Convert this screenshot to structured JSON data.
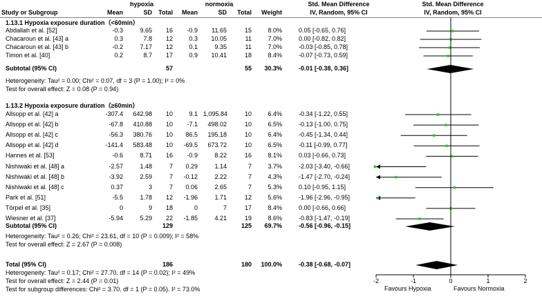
{
  "header": {
    "study_col": "Study or Subgroup",
    "group1": "hypoxia",
    "group2": "normoxia",
    "mean": "Mean",
    "sd": "SD",
    "total": "Total",
    "weight": "Weight",
    "smd_title": "Std. Mean Difference",
    "smd_sub": "IV, Random, 95% CI"
  },
  "chart_data": {
    "type": "forest",
    "title": "Std. Mean Difference",
    "method": "IV, Random, 95% CI",
    "xlim": [
      -2,
      2
    ],
    "xticks": [
      "-2",
      "-1",
      "0",
      "1",
      "2"
    ],
    "xlabel_left": "Favours Hypoxia",
    "xlabel_right": "Favours Normoxia",
    "subgroups": [
      {
        "title": "1.13.1 Hypoxia exposure duration（<60min）",
        "studies": [
          {
            "name": "Abdallah et al. [52]",
            "m1": "-0.3",
            "sd1": "9.65",
            "n1": "16",
            "m2": "-0.9",
            "sd2": "11.65",
            "n2": "15",
            "weight": "8.0%",
            "ci": "0.05 [-0.65, 0.76]",
            "est": 0.05,
            "lo": -0.65,
            "hi": 0.76
          },
          {
            "name": "Chacaroun et al. [43] a",
            "m1": "0.3",
            "sd1": "7.8",
            "n1": "12",
            "m2": "0.3",
            "sd2": "10.05",
            "n2": "11",
            "weight": "7.0%",
            "ci": "0.00 [-0.82, 0.82]",
            "est": 0.0,
            "lo": -0.82,
            "hi": 0.82
          },
          {
            "name": "Chacaroun et al. [43] b",
            "m1": "-0.2",
            "sd1": "7.17",
            "n1": "12",
            "m2": "0.1",
            "sd2": "9.35",
            "n2": "11",
            "weight": "7.0%",
            "ci": "-0.03 [-0.85, 0.78]",
            "est": -0.03,
            "lo": -0.85,
            "hi": 0.78
          },
          {
            "name": "Timon et al. [40]",
            "m1": "0.2",
            "sd1": "8.7",
            "n1": "17",
            "m2": "0.9",
            "sd2": "10.41",
            "n2": "18",
            "weight": "8.4%",
            "ci": "-0.07 [-0.73, 0.59]",
            "est": -0.07,
            "lo": -0.73,
            "hi": 0.59
          }
        ],
        "subtotal": {
          "label": "Subtotal (95% CI)",
          "n1": "57",
          "n2": "55",
          "weight": "30.3%",
          "ci": "-0.01 [-0.38, 0.36]",
          "est": -0.01,
          "lo": -0.38,
          "hi": 0.36
        },
        "heterogeneity": "Heterogeneity: Tau² = 0.00; Chi² = 0.07, df = 3 (P = 1.00); I² = 0%",
        "overall_effect": "Test for overall effect: Z = 0.08 (P = 0.94)"
      },
      {
        "title": "1.13.2 Hypoxia exposure duration（≥60min）",
        "studies": [
          {
            "name": "Allsopp et al. [42] a",
            "m1": "-307.4",
            "sd1": "642.98",
            "n1": "10",
            "m2": "9.1",
            "sd2": "1,095.84",
            "n2": "10",
            "weight": "6.4%",
            "ci": "-0.34 [-1.22, 0.55]",
            "est": -0.34,
            "lo": -1.22,
            "hi": 0.55
          },
          {
            "name": "Allsopp et al. [42] b",
            "m1": "-67.8",
            "sd1": "410.88",
            "n1": "10",
            "m2": "-7.1",
            "sd2": "498.02",
            "n2": "10",
            "weight": "6.5%",
            "ci": "-0.13 [-1.00, 0.75]",
            "est": -0.13,
            "lo": -1.0,
            "hi": 0.75
          },
          {
            "name": "Allsopp et al. [42] c",
            "m1": "-56.3",
            "sd1": "380.76",
            "n1": "10",
            "m2": "86.5",
            "sd2": "195.18",
            "n2": "10",
            "weight": "6.4%",
            "ci": "-0.45 [-1.34, 0.44]",
            "est": -0.45,
            "lo": -1.34,
            "hi": 0.44
          },
          {
            "name": "Allsopp et al. [42] d",
            "m1": "-141.4",
            "sd1": "583.48",
            "n1": "10",
            "m2": "-69.5",
            "sd2": "673.72",
            "n2": "10",
            "weight": "6.5%",
            "ci": "-0.11 [-0.99, 0.77]",
            "est": -0.11,
            "lo": -0.99,
            "hi": 0.77
          },
          {
            "name": "Hannes et al. [53]",
            "m1": "-0.6",
            "sd1": "8.71",
            "n1": "16",
            "m2": "-0.9",
            "sd2": "8.22",
            "n2": "16",
            "weight": "8.1%",
            "ci": "0.03 [-0.66, 0.73]",
            "est": 0.03,
            "lo": -0.66,
            "hi": 0.73
          },
          {
            "name": "Nishiwaki et al. [48] a",
            "m1": "-2.57",
            "sd1": "1.48",
            "n1": "7",
            "m2": "0.29",
            "sd2": "1.14",
            "n2": "7",
            "weight": "3.7%",
            "ci": "-2.03 [-3.40, -0.66]",
            "est": -2.03,
            "lo": -3.4,
            "hi": -0.66
          },
          {
            "name": "Nishiwaki et al. [48] b",
            "m1": "-3.92",
            "sd1": "2.59",
            "n1": "7",
            "m2": "-0.12",
            "sd2": "2.22",
            "n2": "7",
            "weight": "4.3%",
            "ci": "-1.47 [-2.70, -0.24]",
            "est": -1.47,
            "lo": -2.7,
            "hi": -0.24
          },
          {
            "name": "Nishiwaki et al. [48] c",
            "m1": "0.37",
            "sd1": "3",
            "n1": "7",
            "m2": "0.06",
            "sd2": "2.65",
            "n2": "7",
            "weight": "5.3%",
            "ci": "0.10 [-0.95, 1.15]",
            "est": 0.1,
            "lo": -0.95,
            "hi": 1.15
          },
          {
            "name": "Park et al. [51]",
            "m1": "-5.5",
            "sd1": "1.78",
            "n1": "12",
            "m2": "-1.96",
            "sd2": "1.71",
            "n2": "12",
            "weight": "5.6%",
            "ci": "-1.96 [-2.96, -0.95]",
            "est": -1.96,
            "lo": -2.96,
            "hi": -0.95
          },
          {
            "name": "Törpel et al. [35]",
            "m1": "0",
            "sd1": "9",
            "n1": "18",
            "m2": "0",
            "sd2": "7",
            "n2": "17",
            "weight": "8.4%",
            "ci": "0.00 [-0.66, 0.66]",
            "est": 0.0,
            "lo": -0.66,
            "hi": 0.66
          },
          {
            "name": "Wiesner et al. [37]",
            "m1": "-5.94",
            "sd1": "5.29",
            "n1": "22",
            "m2": "-1.85",
            "sd2": "4.21",
            "n2": "19",
            "weight": "8.6%",
            "ci": "-0.83 [-1.47, -0.19]",
            "est": -0.83,
            "lo": -1.47,
            "hi": -0.19
          }
        ],
        "subtotal": {
          "label": "Subtotal (95% CI)",
          "n1": "129",
          "n2": "125",
          "weight": "69.7%",
          "ci": "-0.56 [-0.96, -0.15]",
          "est": -0.56,
          "lo": -0.96,
          "hi": -0.15
        },
        "heterogeneity": "Heterogeneity: Tau² = 0.26; Chi² = 23.61, df = 10 (P = 0.009); I² = 58%",
        "overall_effect": "Test for overall effect: Z = 2.67 (P = 0.008)"
      }
    ],
    "total": {
      "label": "Total (95% CI)",
      "n1": "186",
      "n2": "180",
      "weight": "100.0%",
      "ci": "-0.38 [-0.68, -0.07]",
      "est": -0.38,
      "lo": -0.68,
      "hi": -0.07
    },
    "total_heterogeneity": "Heterogeneity: Tau² = 0.17; Chi² = 27.70, df = 14 (P = 0.02); I² = 49%",
    "total_overall_effect": "Test for overall effect: Z = 2.44 (P = 0.01)",
    "subgroup_differences": "Test for subgroup differences: Chi² = 3.70. df = 1 (P = 0.05). I² = 73.0%"
  },
  "colors": {
    "point": "#22cc22",
    "line": "#000000",
    "rule": "#808080"
  }
}
